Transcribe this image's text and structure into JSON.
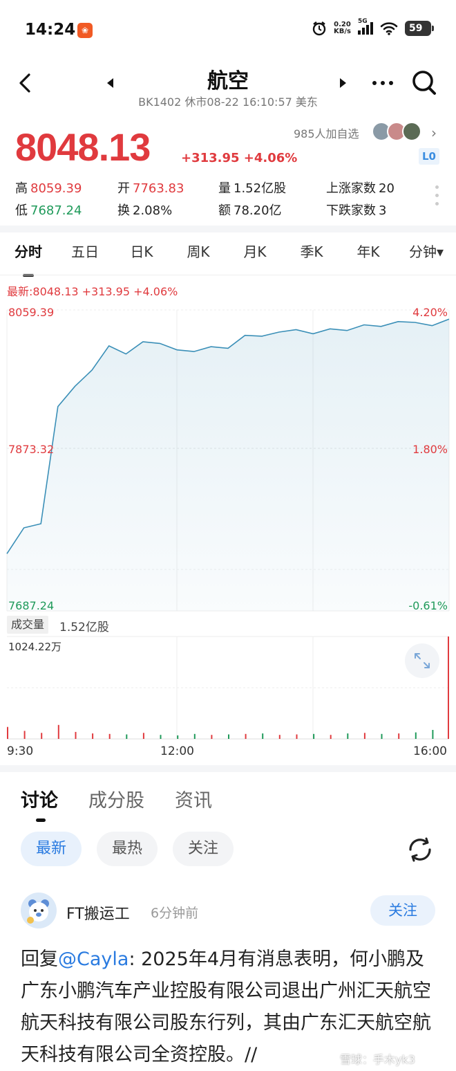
{
  "status_bar": {
    "time": "14:24",
    "app_icon": "app-notification-icon",
    "net_speed_top": "0.20",
    "net_speed_bottom": "KB/s",
    "network": "5G",
    "battery": "59"
  },
  "header": {
    "title": "航空",
    "subtitle": "BK1402 休市08-22 16:10:57 美东"
  },
  "quote": {
    "price": "8048.13",
    "change": "+313.95 +4.06%",
    "watch_text": "985人加自选",
    "level": "L0",
    "stats": [
      {
        "label": "高",
        "value": "8059.39",
        "tone": "red"
      },
      {
        "label": "开",
        "value": "7763.83",
        "tone": "red"
      },
      {
        "label": "量",
        "value": "1.52亿股",
        "tone": "plain"
      },
      {
        "label": "上涨家数",
        "value": "20",
        "tone": "plain"
      },
      {
        "label": "低",
        "value": "7687.24",
        "tone": "green"
      },
      {
        "label": "换",
        "value": "2.08%",
        "tone": "plain"
      },
      {
        "label": "额",
        "value": "78.20亿",
        "tone": "plain"
      },
      {
        "label": "下跌家数",
        "value": "3",
        "tone": "plain"
      }
    ]
  },
  "chart_tabs": [
    "分时",
    "五日",
    "日K",
    "周K",
    "月K",
    "季K",
    "年K",
    "分钟▾"
  ],
  "chart": {
    "latest_line": "最新:8048.13 +313.95 +4.06%",
    "price_high_label": "8059.39",
    "price_mid_label": "7873.32",
    "price_low_label": "7687.24",
    "pct_high_label": "4.20%",
    "pct_mid_label": "1.80%",
    "pct_low_label": "-0.61%",
    "volume_badge": "成交量",
    "volume_total": "1.52亿股",
    "volume_max_label": "1024.22万",
    "time_labels": [
      "9:30",
      "12:00",
      "16:00"
    ]
  },
  "chart_data": {
    "type": "line",
    "title": "",
    "xlabel": "",
    "ylabel": "",
    "ylim": [
      7687.24,
      8059.39
    ],
    "x": [
      "9:30",
      "9:45",
      "10:00",
      "10:15",
      "10:30",
      "10:45",
      "11:00",
      "11:15",
      "11:30",
      "11:45",
      "12:00",
      "12:15",
      "12:30",
      "12:45",
      "13:00",
      "13:15",
      "13:30",
      "13:45",
      "14:00",
      "14:15",
      "14:30",
      "14:45",
      "15:00",
      "15:15",
      "15:30",
      "15:45",
      "16:00"
    ],
    "series": [
      {
        "values": [
          7758,
          7790,
          7795,
          7940,
          7965,
          7985,
          8015,
          8005,
          8020,
          8018,
          8010,
          8008,
          8014,
          8012,
          8028,
          8027,
          8032,
          8035,
          8030,
          8036,
          8034,
          8041,
          8039,
          8045,
          8044,
          8040,
          8048
        ]
      }
    ],
    "volume": {
      "ylim": [
        0,
        1024.22
      ],
      "unit": "万",
      "values": [
        120,
        80,
        60,
        140,
        70,
        55,
        50,
        45,
        60,
        40,
        35,
        50,
        40,
        45,
        50,
        55,
        40,
        45,
        50,
        40,
        55,
        60,
        50,
        55,
        65,
        90,
        1024.22
      ]
    }
  },
  "discussion": {
    "tabs": [
      "讨论",
      "成分股",
      "资讯"
    ],
    "filters": [
      "最新",
      "最热",
      "关注"
    ],
    "post": {
      "author": "FT搬运工",
      "time": "6分钟前",
      "follow_label": "关注",
      "reply_prefix": "回复",
      "mention": "@Cayla",
      "body": ": 2025年4月有消息表明，何小鹏及广东小鹏汽车产业控股有限公司退出广州汇天航空航天科技有限公司股东行列，其由广东汇天航空航天科技有限公司全资控股。//"
    },
    "watermark": "雪球：手木yk3"
  },
  "colors": {
    "up": "#e03a3e",
    "down": "#1f9a5a",
    "line": "#3a8fb7",
    "accent": "#2a7be0"
  }
}
